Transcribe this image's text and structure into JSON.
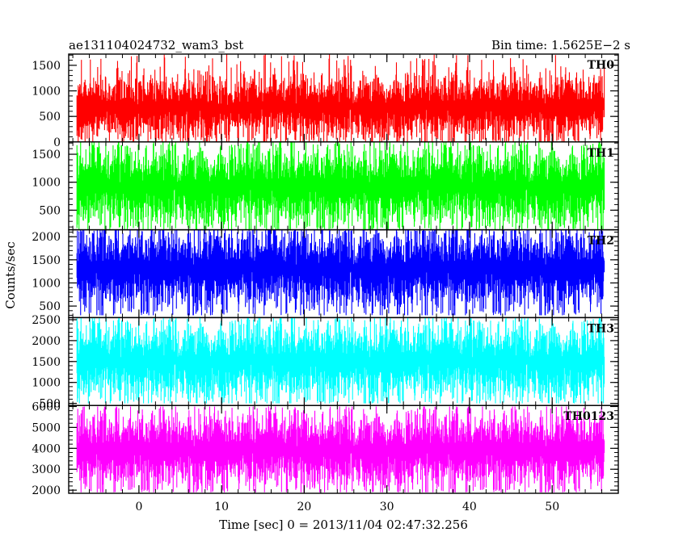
{
  "header": {
    "title": "ae131104024732_wam3_bst",
    "bin_time": "Bin time: 1.5625E−2 s"
  },
  "chart_data": {
    "type": "line",
    "title": "ae131104024732_wam3_bst",
    "xlabel": "Time [sec] 0 = 2013/11/04 02:47:32.256",
    "ylabel": "Counts/sec",
    "xlim": [
      -8.5,
      58
    ],
    "data_x_range": [
      -7.5,
      56.3
    ],
    "x_ticks": [
      0,
      10,
      20,
      30,
      40,
      50
    ],
    "x_tick_labels": [
      "0",
      "10",
      "20",
      "30",
      "40",
      "50"
    ],
    "grid": false,
    "legend": "none",
    "panels": [
      {
        "name": "TH0",
        "color": "#ff0000",
        "ylim": [
          0,
          1720
        ],
        "y_ticks": [
          0,
          500,
          1000,
          1500
        ],
        "y_tick_labels": [
          "0",
          "500",
          "1000",
          "1500"
        ],
        "mean": 680,
        "typical_low": 150,
        "typical_high": 1300,
        "min": 0,
        "max": 1720
      },
      {
        "name": "TH1",
        "color": "#00ff00",
        "ylim": [
          150,
          1720
        ],
        "y_ticks": [
          500,
          1000,
          1500
        ],
        "y_tick_labels": [
          "500",
          "1000",
          "1500"
        ],
        "mean": 920,
        "typical_low": 280,
        "typical_high": 1550,
        "min": 160,
        "max": 1720
      },
      {
        "name": "TH2",
        "color": "#0000ff",
        "ylim": [
          250,
          2150
        ],
        "y_ticks": [
          500,
          1000,
          1500,
          2000
        ],
        "y_tick_labels": [
          "500",
          "1000",
          "1500",
          "2000"
        ],
        "mean": 1300,
        "typical_low": 500,
        "typical_high": 2050,
        "min": 300,
        "max": 2150
      },
      {
        "name": "TH3",
        "color": "#00ffff",
        "ylim": [
          450,
          2550
        ],
        "y_ticks": [
          500,
          1000,
          1500,
          2000,
          2500
        ],
        "y_tick_labels": [
          "500",
          "1000",
          "1500",
          "2000",
          "2500"
        ],
        "mean": 1500,
        "typical_low": 700,
        "typical_high": 2350,
        "min": 500,
        "max": 2550
      },
      {
        "name": "TH0123",
        "color": "#ff00ff",
        "ylim": [
          1850,
          6050
        ],
        "y_ticks": [
          2000,
          3000,
          4000,
          5000,
          6000
        ],
        "y_tick_labels": [
          "2000",
          "3000",
          "4000",
          "5000",
          "6000"
        ],
        "mean": 3900,
        "typical_low": 2300,
        "typical_high": 5500,
        "min": 1900,
        "max": 6000
      }
    ]
  }
}
